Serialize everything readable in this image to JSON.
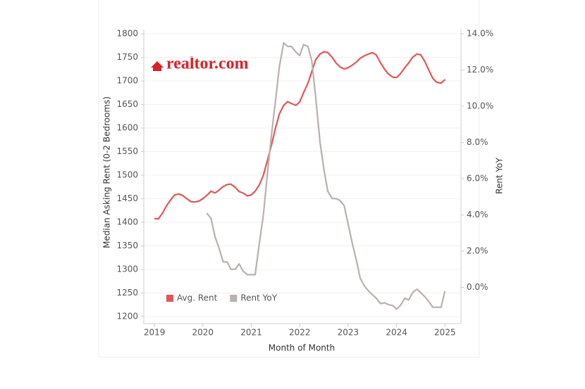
{
  "chart_data": {
    "type": "line",
    "logo_text": "realtor.com",
    "y_label": "Median Asking Rent (0-2 Bedrooms)",
    "y2_label": "Rent YoY",
    "x_label": "Month of Month",
    "x": [
      2019.0,
      2019.08,
      2019.17,
      2019.25,
      2019.33,
      2019.42,
      2019.5,
      2019.58,
      2019.67,
      2019.75,
      2019.83,
      2019.92,
      2020.0,
      2020.08,
      2020.17,
      2020.25,
      2020.33,
      2020.42,
      2020.5,
      2020.58,
      2020.67,
      2020.75,
      2020.83,
      2020.92,
      2021.0,
      2021.08,
      2021.17,
      2021.25,
      2021.33,
      2021.42,
      2021.5,
      2021.58,
      2021.67,
      2021.75,
      2021.83,
      2021.92,
      2022.0,
      2022.08,
      2022.17,
      2022.25,
      2022.33,
      2022.42,
      2022.5,
      2022.58,
      2022.67,
      2022.75,
      2022.83,
      2022.92,
      2023.0,
      2023.08,
      2023.17,
      2023.25,
      2023.33,
      2023.42,
      2023.5,
      2023.58,
      2023.67,
      2023.75,
      2023.83,
      2023.92,
      2024.0,
      2024.08,
      2024.17,
      2024.25,
      2024.33,
      2024.42,
      2024.5,
      2024.58,
      2024.67,
      2024.75,
      2024.83,
      2024.92,
      2025.0
    ],
    "series": [
      {
        "name": "Avg. Rent",
        "color": "#e15759",
        "axis": "y",
        "values": [
          1408,
          1407,
          1420,
          1435,
          1447,
          1458,
          1460,
          1457,
          1450,
          1444,
          1443,
          1445,
          1450,
          1457,
          1466,
          1462,
          1468,
          1476,
          1480,
          1481,
          1474,
          1465,
          1462,
          1456,
          1458,
          1466,
          1480,
          1500,
          1530,
          1565,
          1600,
          1630,
          1648,
          1656,
          1652,
          1648,
          1655,
          1675,
          1695,
          1720,
          1745,
          1757,
          1762,
          1760,
          1750,
          1738,
          1730,
          1725,
          1728,
          1733,
          1740,
          1748,
          1753,
          1757,
          1760,
          1755,
          1738,
          1725,
          1715,
          1708,
          1707,
          1715,
          1728,
          1738,
          1750,
          1757,
          1755,
          1742,
          1722,
          1705,
          1697,
          1695,
          1703
        ]
      },
      {
        "name": "Rent YoY",
        "color": "#bab0ac",
        "axis": "y2",
        "values": [
          null,
          null,
          null,
          null,
          null,
          null,
          null,
          null,
          null,
          null,
          null,
          null,
          null,
          4.1,
          3.8,
          2.8,
          2.2,
          1.4,
          1.4,
          1.0,
          1.0,
          1.3,
          0.9,
          0.7,
          0.7,
          0.7,
          2.5,
          4.0,
          6.2,
          8.5,
          10.3,
          12.2,
          13.5,
          13.3,
          13.3,
          13.0,
          12.8,
          13.4,
          13.3,
          12.5,
          10.5,
          8.0,
          6.5,
          5.3,
          4.9,
          4.9,
          4.8,
          4.5,
          3.5,
          2.5,
          1.5,
          0.5,
          0.1,
          -0.2,
          -0.4,
          -0.6,
          -0.9,
          -0.85,
          -0.95,
          -1.0,
          -1.2,
          -1.0,
          -0.6,
          -0.7,
          -0.3,
          -0.1,
          -0.3,
          -0.5,
          -0.8,
          -1.1,
          -1.1,
          -1.1,
          -0.2
        ]
      }
    ],
    "xlim": [
      2018.78,
      2025.33
    ],
    "xticks": [
      2019,
      2020,
      2021,
      2022,
      2023,
      2024,
      2025
    ],
    "ylim": [
      1185,
      1800
    ],
    "yticks": [
      1200,
      1250,
      1300,
      1350,
      1400,
      1450,
      1500,
      1550,
      1600,
      1650,
      1700,
      1750,
      1800
    ],
    "y2lim": [
      -2,
      14
    ],
    "y2ticks": [
      {
        "value": 0,
        "label": "0.0%"
      },
      {
        "value": 2,
        "label": "2.0%"
      },
      {
        "value": 4,
        "label": "4.0%"
      },
      {
        "value": 6,
        "label": "6.0%"
      },
      {
        "value": 8,
        "label": "8.0%"
      },
      {
        "value": 10,
        "label": "10.0%"
      },
      {
        "value": 12,
        "label": "12.0%"
      },
      {
        "value": 14,
        "label": "14.0%"
      }
    ],
    "grid": true,
    "legend": "bottom-left"
  }
}
